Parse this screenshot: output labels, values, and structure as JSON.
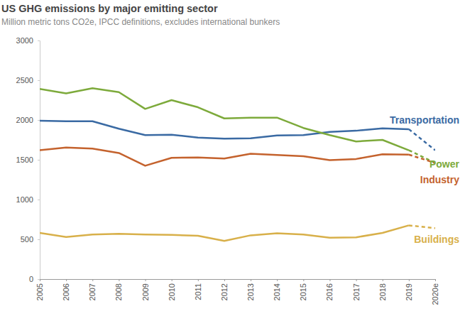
{
  "chart_data": {
    "type": "line",
    "title": "US GHG emissions by major emitting sector",
    "subtitle": "Million metric tons CO2e, IPCC definitions, excludes international bunkers",
    "categories": [
      "2005",
      "2006",
      "2007",
      "2008",
      "2009",
      "2010",
      "2011",
      "2012",
      "2013",
      "2014",
      "2015",
      "2016",
      "2017",
      "2018",
      "2019",
      "2020e"
    ],
    "series": [
      {
        "name": "Transportation",
        "color": "#3a6aa3",
        "values": [
          1990,
          1985,
          1985,
          1890,
          1810,
          1815,
          1780,
          1765,
          1770,
          1805,
          1810,
          1850,
          1865,
          1895,
          1885,
          1620
        ]
      },
      {
        "name": "Power",
        "color": "#7daa3b",
        "values": [
          2390,
          2335,
          2400,
          2350,
          2140,
          2250,
          2160,
          2020,
          2030,
          2030,
          1900,
          1810,
          1730,
          1750,
          1620,
          1460
        ]
      },
      {
        "name": "Industry",
        "color": "#c4622d",
        "values": [
          1620,
          1655,
          1640,
          1585,
          1425,
          1525,
          1530,
          1515,
          1575,
          1560,
          1545,
          1495,
          1510,
          1570,
          1565,
          1460
        ]
      },
      {
        "name": "Buildings",
        "color": "#d8b04a",
        "values": [
          580,
          530,
          560,
          570,
          560,
          555,
          545,
          480,
          550,
          575,
          560,
          520,
          525,
          580,
          675,
          640
        ]
      }
    ],
    "ylim": [
      0,
      3000
    ],
    "yticks": [
      0,
      500,
      1000,
      1500,
      2000,
      2500,
      3000
    ],
    "grid": false
  }
}
